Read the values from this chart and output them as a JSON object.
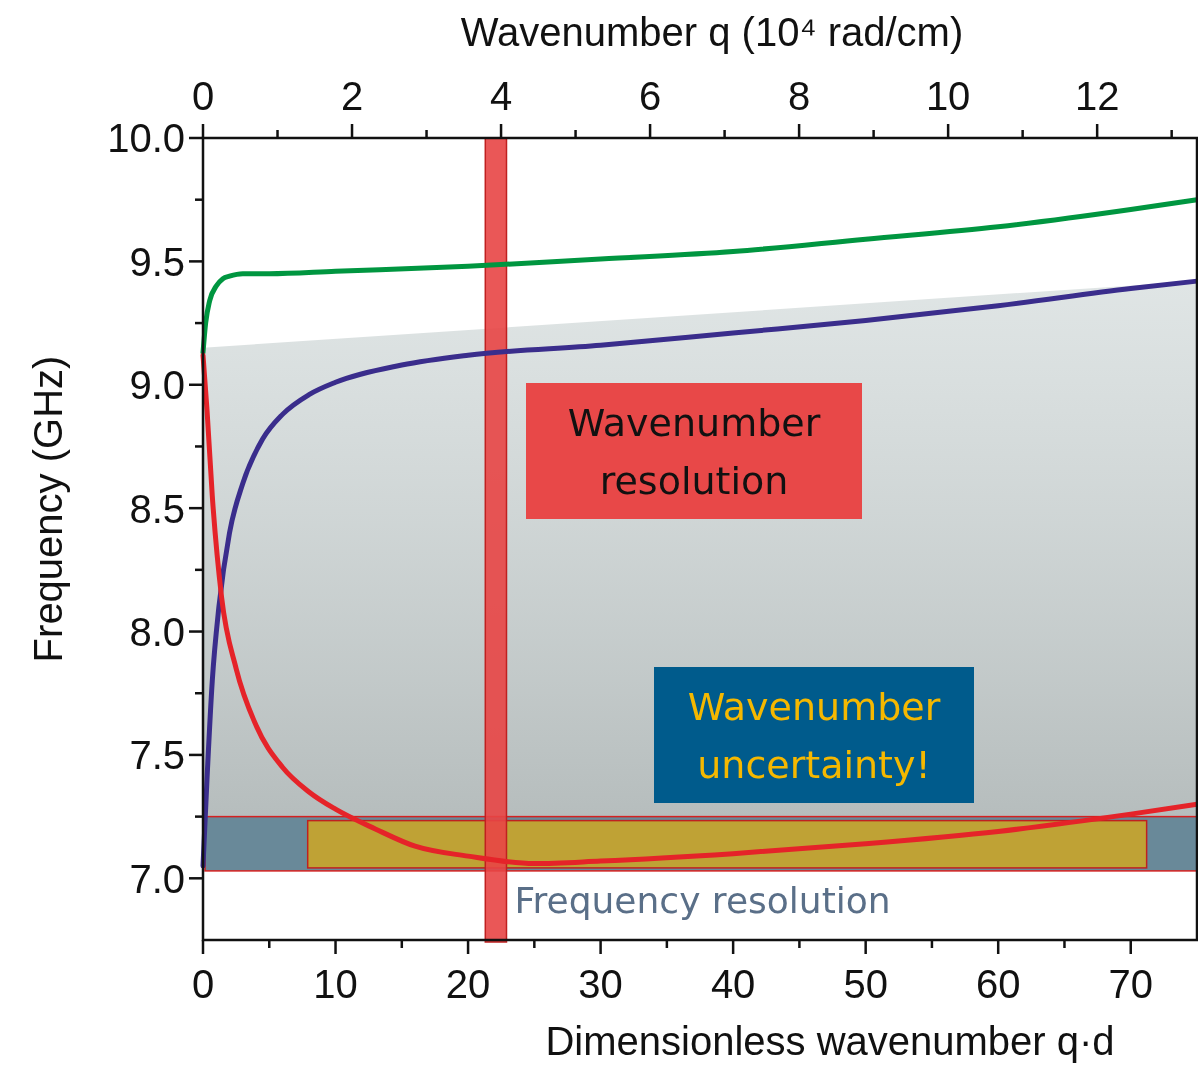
{
  "chart_data": {
    "type": "line",
    "xlabel": "Dimensionless wavenumber q·d",
    "x2label": "Wavenumber q (10⁴ rad/cm)",
    "ylabel": "Frequency (GHz)",
    "xlim": [
      0,
      75
    ],
    "xticks": [
      0,
      {
        "value": 5,
        "label": null
      },
      10,
      {
        "value": 15,
        "label": null
      },
      20,
      {
        "value": 25,
        "label": null
      },
      30,
      {
        "value": 35,
        "label": null
      },
      40,
      {
        "value": 45,
        "label": null
      },
      50,
      {
        "value": 55,
        "label": null
      },
      60,
      {
        "value": 65,
        "label": null
      },
      70
    ],
    "x2lim": [
      0,
      13.34
    ],
    "x2ticks": [
      0,
      {
        "value": 1,
        "label": null
      },
      2,
      {
        "value": 3,
        "label": null
      },
      4,
      {
        "value": 5,
        "label": null
      },
      6,
      {
        "value": 7,
        "label": null
      },
      8,
      {
        "value": 9,
        "label": null
      },
      10,
      {
        "value": 11,
        "label": null
      },
      12,
      {
        "value": 13,
        "label": null
      }
    ],
    "ylim": [
      6.75,
      10
    ],
    "yticks": [
      {
        "value": 7,
        "label": "7.0"
      },
      {
        "value": 7.25,
        "label": null
      },
      7.5,
      {
        "value": 7.75,
        "label": null
      },
      {
        "value": 8,
        "label": "8.0"
      },
      {
        "value": 8.25,
        "label": null
      },
      8.5,
      {
        "value": 8.75,
        "label": null
      },
      {
        "value": 9,
        "label": "9.0"
      },
      {
        "value": 9.25,
        "label": null
      },
      9.5,
      {
        "value": 9.75,
        "label": null
      },
      {
        "value": 10,
        "label": "10.0"
      }
    ],
    "grid": false,
    "series": [
      {
        "type": "area",
        "color": "#d2dada",
        "x": [
          0,
          75
        ],
        "values": [
          9.15,
          9.42
        ]
      },
      {
        "color": "#009640",
        "x": [
          0,
          0.2,
          0.5,
          1,
          1.5,
          2,
          3,
          5,
          10,
          20,
          30,
          40,
          50,
          60,
          70,
          75
        ],
        "values": [
          9.13,
          9.25,
          9.34,
          9.4,
          9.43,
          9.44,
          9.45,
          9.45,
          9.46,
          9.48,
          9.51,
          9.54,
          9.59,
          9.64,
          9.71,
          9.75
        ]
      },
      {
        "color": "#3a2d8c",
        "x": [
          0,
          0.3,
          0.7,
          1.2,
          2,
          3,
          4.5,
          6,
          8,
          10,
          15,
          20,
          30,
          40,
          50,
          60,
          70,
          75
        ],
        "values": [
          7.05,
          7.4,
          7.8,
          8.1,
          8.4,
          8.6,
          8.78,
          8.88,
          8.96,
          9.01,
          9.08,
          9.12,
          9.16,
          9.21,
          9.26,
          9.32,
          9.39,
          9.42
        ]
      },
      {
        "color": "#e52329",
        "x": [
          0,
          0.3,
          0.7,
          1.4,
          2.5,
          4,
          6,
          8,
          10,
          13,
          16,
          20,
          25,
          30,
          40,
          50,
          60,
          70,
          75
        ],
        "values": [
          9.12,
          8.9,
          8.55,
          8.14,
          7.85,
          7.62,
          7.45,
          7.35,
          7.28,
          7.2,
          7.13,
          7.09,
          7.06,
          7.07,
          7.1,
          7.14,
          7.19,
          7.26,
          7.3
        ]
      }
    ],
    "bands": [
      {
        "axis": "y",
        "from": 7.03,
        "to": 7.25,
        "label": "Frequency resolution",
        "color": "#4f7487"
      },
      {
        "axis": "x",
        "from": 7.9,
        "to": 71.2,
        "label": "Wavenumber uncertainty!",
        "color": "#c9a52a"
      },
      {
        "axis": "x",
        "from": 21.3,
        "to": 22.9,
        "label": "Wavenumber resolution",
        "color": "#e84545"
      }
    ]
  }
}
